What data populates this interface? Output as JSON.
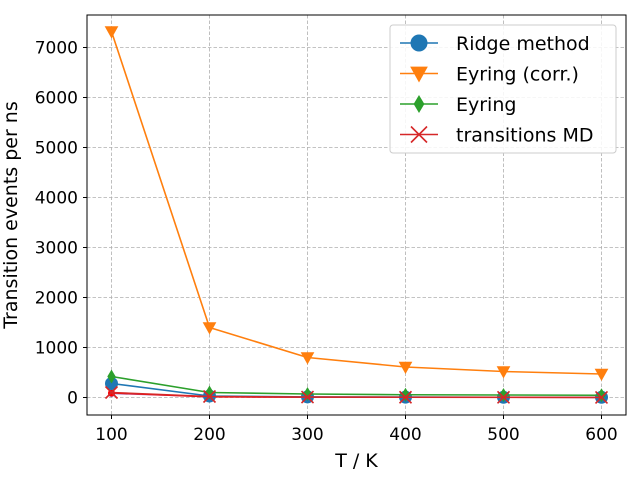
{
  "chart_data": {
    "type": "line",
    "title": "",
    "xlabel": "T / K",
    "ylabel": "Transition events per ns",
    "x": [
      100,
      200,
      300,
      400,
      500,
      600
    ],
    "xlim": [
      75,
      625
    ],
    "ylim": [
      -350,
      7650
    ],
    "xticks": [
      100,
      200,
      300,
      400,
      500,
      600
    ],
    "yticks": [
      0,
      1000,
      2000,
      3000,
      4000,
      5000,
      6000,
      7000
    ],
    "grid": true,
    "legend_position": "top-right",
    "series": [
      {
        "name": "Ridge method",
        "color": "#1f77b4",
        "marker": "circle",
        "values": [
          280,
          30,
          12,
          8,
          5,
          4
        ]
      },
      {
        "name": "Eyring (corr.)",
        "color": "#ff7f0e",
        "marker": "triangle-down",
        "values": [
          7320,
          1400,
          800,
          610,
          520,
          470
        ]
      },
      {
        "name": "Eyring",
        "color": "#2ca02c",
        "marker": "thin-diamond",
        "values": [
          420,
          100,
          70,
          55,
          50,
          45
        ]
      },
      {
        "name": "transitions MD",
        "color": "#d62728",
        "marker": "x",
        "values": [
          100,
          20,
          8,
          5,
          3,
          2
        ]
      }
    ],
    "extra_marks": [
      {
        "color": "#9467bd",
        "values": [
          80,
          15,
          6,
          4,
          2,
          2
        ]
      },
      {
        "color": "#ff0000",
        "values": [
          90,
          10,
          5,
          3,
          2,
          1
        ]
      }
    ]
  }
}
